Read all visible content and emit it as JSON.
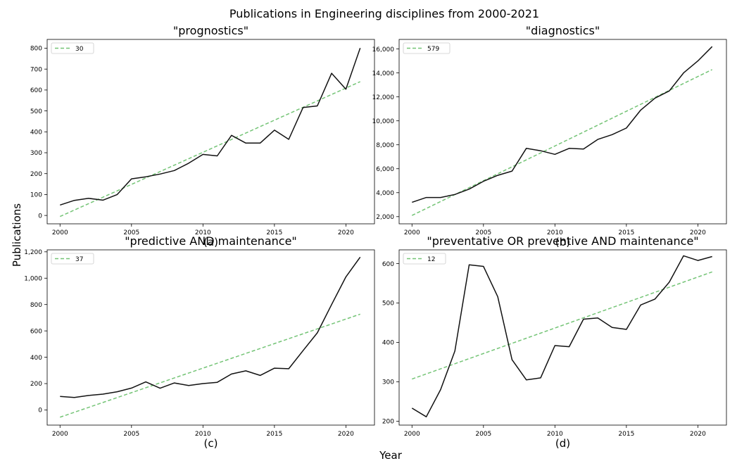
{
  "figure": {
    "suptitle": "Publications in Engineering disciplines from 2000-2021",
    "xlabel": "Year",
    "ylabel": "Publications"
  },
  "colors": {
    "data_line": "#111111",
    "trend_line": "#74c476",
    "axes": "#000000"
  },
  "chart_data": [
    {
      "type": "line",
      "title": "\"prognostics\"",
      "panel_label": "(a)",
      "x": [
        2000,
        2001,
        2002,
        2003,
        2004,
        2005,
        2006,
        2007,
        2008,
        2009,
        2010,
        2011,
        2012,
        2013,
        2014,
        2015,
        2016,
        2017,
        2018,
        2019,
        2020,
        2021
      ],
      "series": [
        {
          "values": [
            50,
            72,
            82,
            73,
            100,
            175,
            185,
            198,
            215,
            250,
            292,
            285,
            383,
            346,
            346,
            408,
            364,
            516,
            524,
            680,
            604,
            801
          ]
        },
        {
          "name": "30",
          "style": "dashed",
          "values": [
            -5,
            640
          ],
          "x": [
            2000,
            2021
          ]
        }
      ],
      "xticks": [
        "2000",
        "2005",
        "2010",
        "2015",
        "2020"
      ],
      "yticks": [
        "0",
        "100",
        "200",
        "300",
        "400",
        "500",
        "600",
        "700",
        "800"
      ],
      "ytick_values": [
        0,
        100,
        200,
        300,
        400,
        500,
        600,
        700,
        800
      ],
      "xlim": [
        1999.1,
        2022.0
      ],
      "ylim": [
        -40,
        842
      ],
      "legend": "upper-left",
      "grid": false
    },
    {
      "type": "line",
      "title": "\"diagnostics\"",
      "panel_label": "(b)",
      "x": [
        2000,
        2001,
        2002,
        2003,
        2004,
        2005,
        2006,
        2007,
        2008,
        2009,
        2010,
        2011,
        2012,
        2013,
        2014,
        2015,
        2016,
        2017,
        2018,
        2019,
        2020,
        2021
      ],
      "series": [
        {
          "values": [
            3200,
            3600,
            3600,
            3850,
            4300,
            4950,
            5450,
            5800,
            7700,
            7500,
            7200,
            7700,
            7650,
            8450,
            8850,
            9400,
            10900,
            11900,
            12500,
            14000,
            15000,
            16200
          ]
        },
        {
          "name": "579",
          "style": "dashed",
          "values": [
            2100,
            14280
          ],
          "x": [
            2000,
            2021
          ]
        }
      ],
      "xticks": [
        "2000",
        "2005",
        "2010",
        "2015",
        "2020"
      ],
      "yticks": [
        "2,000",
        "4,000",
        "6,000",
        "8,000",
        "10,000",
        "12,000",
        "14,000",
        "16,000"
      ],
      "ytick_values": [
        2000,
        4000,
        6000,
        8000,
        10000,
        12000,
        14000,
        16000
      ],
      "xlim": [
        1999.1,
        2022.0
      ],
      "ylim": [
        1400,
        16800
      ],
      "legend": "upper-left",
      "grid": false
    },
    {
      "type": "line",
      "title": "\"predictive AND maintenance\"",
      "panel_label": "(c)",
      "x": [
        2000,
        2001,
        2002,
        2003,
        2004,
        2005,
        2006,
        2007,
        2008,
        2009,
        2010,
        2011,
        2012,
        2013,
        2014,
        2015,
        2016,
        2017,
        2018,
        2019,
        2020,
        2021
      ],
      "series": [
        {
          "values": [
            103,
            95,
            110,
            120,
            138,
            166,
            213,
            165,
            205,
            185,
            200,
            210,
            273,
            297,
            262,
            317,
            313,
            450,
            585,
            800,
            1010,
            1160
          ]
        },
        {
          "name": "37",
          "style": "dashed",
          "values": [
            -55,
            727
          ],
          "x": [
            2000,
            2021
          ]
        }
      ],
      "xticks": [
        "2000",
        "2005",
        "2010",
        "2015",
        "2020"
      ],
      "yticks": [
        "0",
        "200",
        "400",
        "600",
        "800",
        "1,000",
        "1,200"
      ],
      "ytick_values": [
        0,
        200,
        400,
        600,
        800,
        1000,
        1200
      ],
      "xlim": [
        1999.1,
        2022.0
      ],
      "ylim": [
        -115,
        1215
      ],
      "legend": "upper-left",
      "grid": false
    },
    {
      "type": "line",
      "title": "\"preventative OR preventive AND maintenance\"",
      "panel_label": "(d)",
      "x": [
        2000,
        2001,
        2002,
        2003,
        2004,
        2005,
        2006,
        2007,
        2008,
        2009,
        2010,
        2011,
        2012,
        2013,
        2014,
        2015,
        2016,
        2017,
        2018,
        2019,
        2020,
        2021
      ],
      "series": [
        {
          "values": [
            233,
            211,
            280,
            378,
            597,
            593,
            516,
            356,
            305,
            310,
            392,
            389,
            459,
            462,
            438,
            433,
            495,
            510,
            553,
            620,
            608,
            618
          ]
        },
        {
          "name": "12",
          "style": "dashed",
          "values": [
            307,
            579
          ],
          "x": [
            2000,
            2021
          ]
        }
      ],
      "xticks": [
        "2000",
        "2005",
        "2010",
        "2015",
        "2020"
      ],
      "yticks": [
        "200",
        "300",
        "400",
        "500",
        "600"
      ],
      "ytick_values": [
        200,
        300,
        400,
        500,
        600
      ],
      "xlim": [
        1999.1,
        2022.0
      ],
      "ylim": [
        190,
        635
      ],
      "legend": "upper-left",
      "grid": false
    }
  ]
}
